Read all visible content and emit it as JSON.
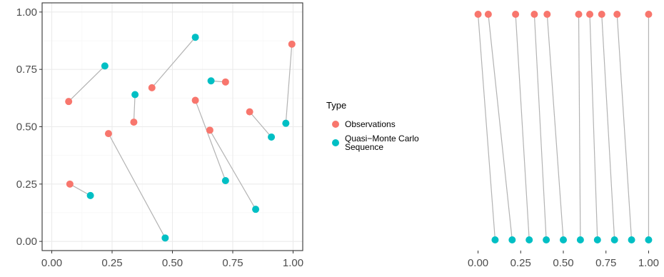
{
  "colors": {
    "observations": "#F8766D",
    "qmc": "#00BFC4",
    "connector": "#b3b3b3",
    "grid_major": "#ebebeb",
    "grid_minor": "#f4f4f4",
    "panel_border": "#333333"
  },
  "legend": {
    "title": "Type",
    "items": [
      {
        "label_lines": [
          "Observations"
        ],
        "color_key": "observations"
      },
      {
        "label_lines": [
          "Quasi−Monte Carlo",
          "Sequence"
        ],
        "color_key": "qmc"
      }
    ]
  },
  "chart_data": [
    {
      "type": "scatter",
      "title": "",
      "xlabel": "",
      "ylabel": "",
      "xlim": [
        -0.04,
        1.04
      ],
      "ylim": [
        -0.04,
        1.04
      ],
      "x_ticks": [
        "0.00",
        "0.25",
        "0.50",
        "0.75",
        "1.00"
      ],
      "y_ticks": [
        "0.00",
        "0.25",
        "0.50",
        "0.75",
        "1.00"
      ],
      "grid": true,
      "panel_border": true,
      "series": [
        {
          "name": "Observations",
          "color_key": "observations",
          "x": [
            0.07,
            0.415,
            0.72,
            0.995,
            0.595,
            0.82,
            0.34,
            0.235,
            0.655,
            0.075
          ],
          "y": [
            0.61,
            0.67,
            0.695,
            0.86,
            0.615,
            0.565,
            0.52,
            0.47,
            0.485,
            0.25
          ]
        },
        {
          "name": "Quasi−Monte Carlo Sequence",
          "color_key": "qmc",
          "x": [
            0.22,
            0.595,
            0.66,
            0.97,
            0.72,
            0.91,
            0.345,
            0.47,
            0.845,
            0.16
          ],
          "y": [
            0.765,
            0.89,
            0.7,
            0.515,
            0.265,
            0.455,
            0.64,
            0.015,
            0.14,
            0.2
          ]
        }
      ],
      "connect_pairs": true
    },
    {
      "type": "scatter",
      "title": "",
      "xlabel": "",
      "ylabel": "",
      "xlim": [
        -0.04,
        1.04
      ],
      "x_ticks": [
        "0.00",
        "0.25",
        "0.50",
        "0.75",
        "1.00"
      ],
      "y_ticks": [],
      "grid": false,
      "panel_border": false,
      "series": [
        {
          "name": "Observations",
          "color_key": "observations",
          "x": [
            0.0,
            0.06,
            0.22,
            0.33,
            0.405,
            0.59,
            0.655,
            0.725,
            0.815,
            1.0
          ],
          "y": [
            1,
            1,
            1,
            1,
            1,
            1,
            1,
            1,
            1,
            1
          ]
        },
        {
          "name": "Quasi−Monte Carlo Sequence",
          "color_key": "qmc",
          "x": [
            0.1,
            0.2,
            0.3,
            0.4,
            0.5,
            0.6,
            0.7,
            0.8,
            0.9,
            1.0
          ],
          "y": [
            0,
            0,
            0,
            0,
            0,
            0,
            0,
            0,
            0,
            0
          ]
        }
      ],
      "connect_pairs": true
    }
  ]
}
